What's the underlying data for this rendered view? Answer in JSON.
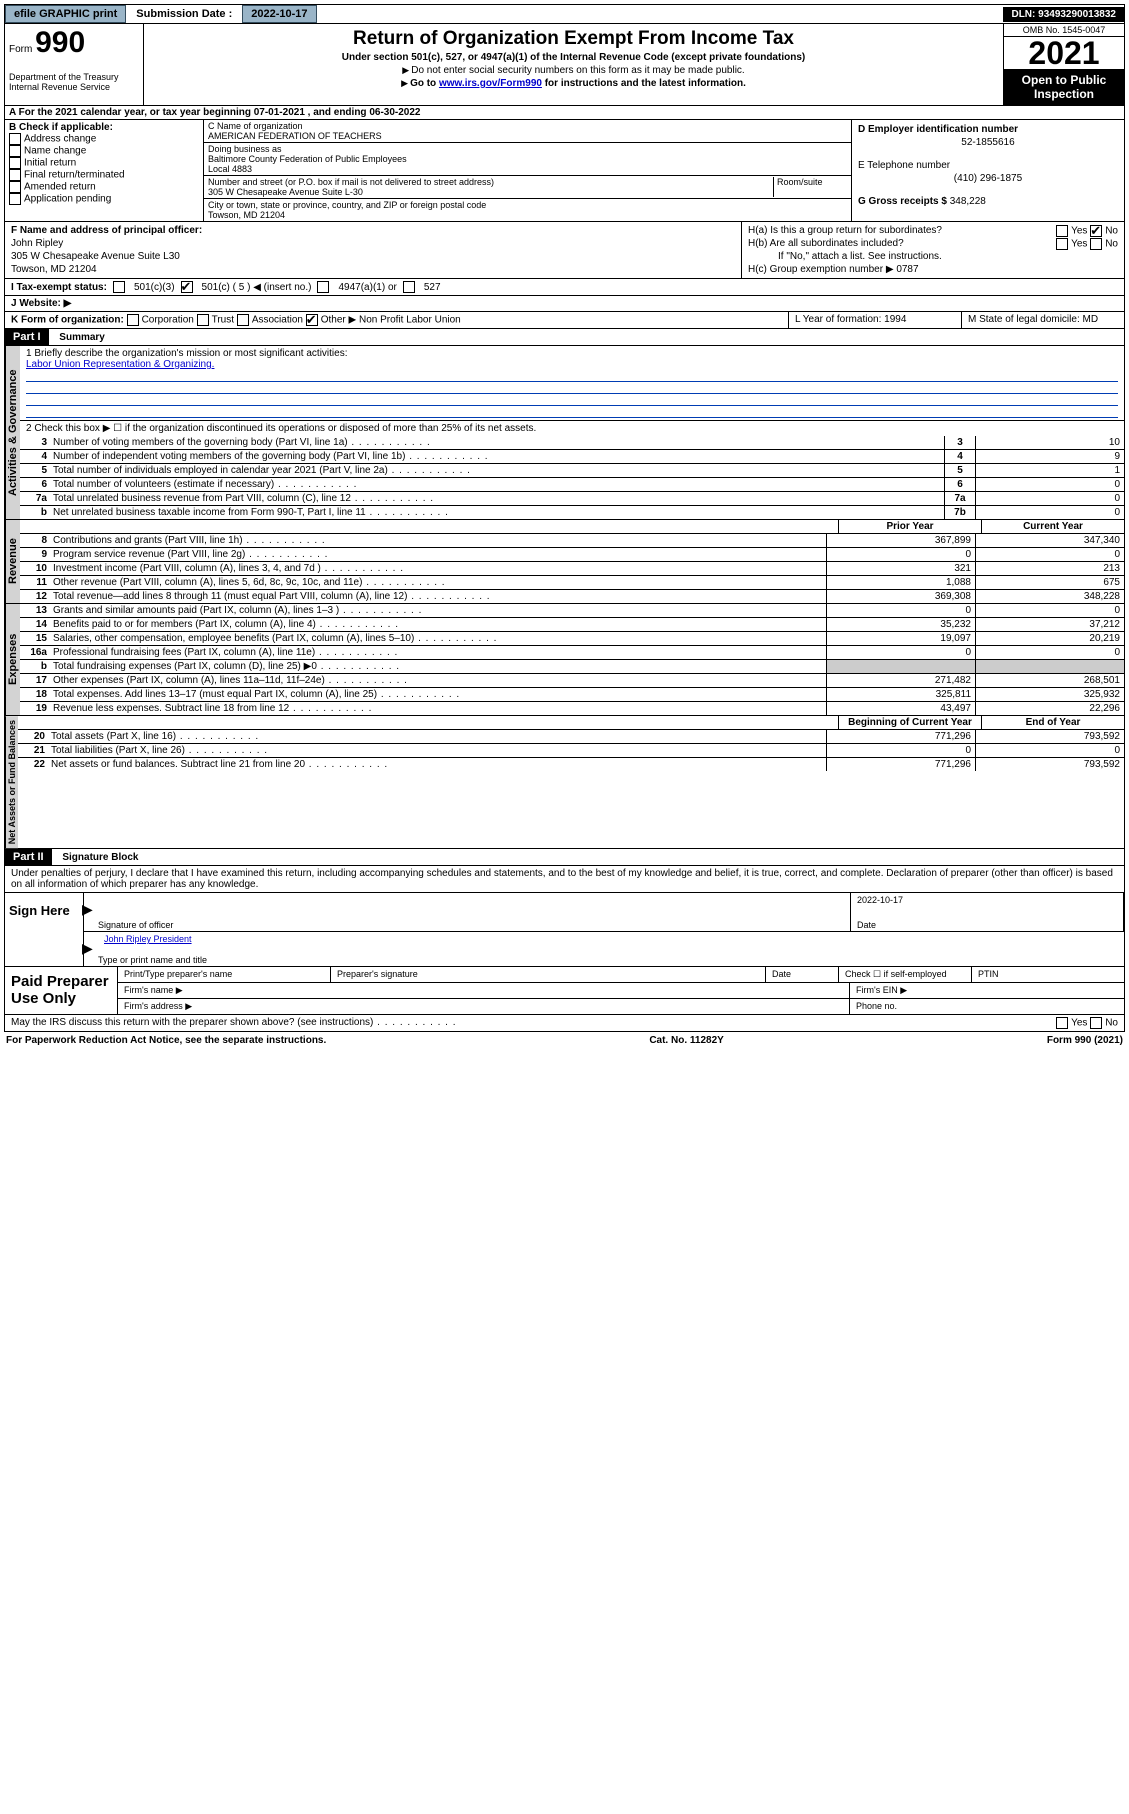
{
  "topbar": {
    "efile": "efile GRAPHIC print",
    "sub_label": "Submission Date :",
    "sub_date": "2022-10-17",
    "dln": "DLN: 93493290013832"
  },
  "header": {
    "form": "Form",
    "num": "990",
    "dept": "Department of the Treasury\nInternal Revenue Service",
    "title": "Return of Organization Exempt From Income Tax",
    "sub": "Under section 501(c), 527, or 4947(a)(1) of the Internal Revenue Code (except private foundations)",
    "line1": "Do not enter social security numbers on this form as it may be made public.",
    "line2_pre": "Go to ",
    "line2_link": "www.irs.gov/Form990",
    "line2_post": " for instructions and the latest information.",
    "omb": "OMB No. 1545-0047",
    "year": "2021",
    "inspect": "Open to Public Inspection"
  },
  "a_line": "A For the 2021 calendar year, or tax year beginning 07-01-2021    , and ending 06-30-2022",
  "b": {
    "title": "B Check if applicable:",
    "items": [
      "Address change",
      "Name change",
      "Initial return",
      "Final return/terminated",
      "Amended return",
      "Application pending"
    ]
  },
  "c": {
    "name_label": "C Name of organization",
    "name": "AMERICAN FEDERATION OF TEACHERS",
    "dba_label": "Doing business as",
    "dba": "Baltimore County Federation of Public Employees\nLocal 4883",
    "street_label": "Number and street (or P.O. box if mail is not delivered to street address)",
    "street": "305 W Chesapeake Avenue Suite L-30",
    "room_label": "Room/suite",
    "city_label": "City or town, state or province, country, and ZIP or foreign postal code",
    "city": "Towson, MD  21204"
  },
  "d": {
    "ein_label": "D Employer identification number",
    "ein": "52-1855616",
    "e_label": "E Telephone number",
    "phone": "(410) 296-1875",
    "g_label": "G Gross receipts $",
    "g_val": "348,228"
  },
  "f": {
    "label": "F  Name and address of principal officer:",
    "name": "John Ripley",
    "addr1": "305 W Chesapeake Avenue Suite L30",
    "addr2": "Towson, MD  21204"
  },
  "h": {
    "a": "H(a)  Is this a group return for subordinates?",
    "b": "H(b)  Are all subordinates included?",
    "b_note": "If \"No,\" attach a list. See instructions.",
    "c": "H(c)  Group exemption number ▶",
    "c_val": "0787",
    "yes": "Yes",
    "no": "No"
  },
  "i": {
    "label": "I   Tax-exempt status:",
    "opts": [
      "501(c)(3)",
      "501(c) ( 5 ) ◀ (insert no.)",
      "4947(a)(1) or",
      "527"
    ]
  },
  "j": {
    "label": "J   Website: ▶"
  },
  "k": {
    "label": "K Form of organization:",
    "opts": [
      "Corporation",
      "Trust",
      "Association",
      "Other ▶"
    ],
    "other": "Non Profit Labor Union",
    "l": "L Year of formation: 1994",
    "m": "M State of legal domicile: MD"
  },
  "partI": {
    "header": "Part I",
    "title": "Summary",
    "q1": "1   Briefly describe the organization's mission or most significant activities:",
    "mission": "Labor Union Representation & Organizing.",
    "q2": "2   Check this box ▶ ☐  if the organization discontinued its operations or disposed of more than 25% of its net assets.",
    "rows_gov": [
      {
        "n": "3",
        "d": "Number of voting members of the governing body (Part VI, line 1a)",
        "k": "3",
        "v": "10"
      },
      {
        "n": "4",
        "d": "Number of independent voting members of the governing body (Part VI, line 1b)",
        "k": "4",
        "v": "9"
      },
      {
        "n": "5",
        "d": "Total number of individuals employed in calendar year 2021 (Part V, line 2a)",
        "k": "5",
        "v": "1"
      },
      {
        "n": "6",
        "d": "Total number of volunteers (estimate if necessary)",
        "k": "6",
        "v": "0"
      },
      {
        "n": "7a",
        "d": "Total unrelated business revenue from Part VIII, column (C), line 12",
        "k": "7a",
        "v": "0"
      },
      {
        "n": "b",
        "d": "Net unrelated business taxable income from Form 990-T, Part I, line 11",
        "k": "7b",
        "v": "0"
      }
    ],
    "prior": "Prior Year",
    "current": "Current Year",
    "rows_rev": [
      {
        "n": "8",
        "d": "Contributions and grants (Part VIII, line 1h)",
        "p": "367,899",
        "c": "347,340"
      },
      {
        "n": "9",
        "d": "Program service revenue (Part VIII, line 2g)",
        "p": "0",
        "c": "0"
      },
      {
        "n": "10",
        "d": "Investment income (Part VIII, column (A), lines 3, 4, and 7d )",
        "p": "321",
        "c": "213"
      },
      {
        "n": "11",
        "d": "Other revenue (Part VIII, column (A), lines 5, 6d, 8c, 9c, 10c, and 11e)",
        "p": "1,088",
        "c": "675"
      },
      {
        "n": "12",
        "d": "Total revenue—add lines 8 through 11 (must equal Part VIII, column (A), line 12)",
        "p": "369,308",
        "c": "348,228"
      }
    ],
    "rows_exp": [
      {
        "n": "13",
        "d": "Grants and similar amounts paid (Part IX, column (A), lines 1–3 )",
        "p": "0",
        "c": "0"
      },
      {
        "n": "14",
        "d": "Benefits paid to or for members (Part IX, column (A), line 4)",
        "p": "35,232",
        "c": "37,212"
      },
      {
        "n": "15",
        "d": "Salaries, other compensation, employee benefits (Part IX, column (A), lines 5–10)",
        "p": "19,097",
        "c": "20,219"
      },
      {
        "n": "16a",
        "d": "Professional fundraising fees (Part IX, column (A), line 11e)",
        "p": "0",
        "c": "0"
      },
      {
        "n": "b",
        "d": "Total fundraising expenses (Part IX, column (D), line 25) ▶0",
        "p": "",
        "c": "",
        "shade": true
      },
      {
        "n": "17",
        "d": "Other expenses (Part IX, column (A), lines 11a–11d, 11f–24e)",
        "p": "271,482",
        "c": "268,501"
      },
      {
        "n": "18",
        "d": "Total expenses. Add lines 13–17 (must equal Part IX, column (A), line 25)",
        "p": "325,811",
        "c": "325,932"
      },
      {
        "n": "19",
        "d": "Revenue less expenses. Subtract line 18 from line 12",
        "p": "43,497",
        "c": "22,296"
      }
    ],
    "beg": "Beginning of Current Year",
    "end": "End of Year",
    "rows_bal": [
      {
        "n": "20",
        "d": "Total assets (Part X, line 16)",
        "p": "771,296",
        "c": "793,592"
      },
      {
        "n": "21",
        "d": "Total liabilities (Part X, line 26)",
        "p": "0",
        "c": "0"
      },
      {
        "n": "22",
        "d": "Net assets or fund balances. Subtract line 21 from line 20",
        "p": "771,296",
        "c": "793,592"
      }
    ],
    "labels": {
      "gov": "Activities & Governance",
      "rev": "Revenue",
      "exp": "Expenses",
      "bal": "Net Assets or Fund Balances"
    }
  },
  "partII": {
    "header": "Part II",
    "title": "Signature Block",
    "perjury": "Under penalties of perjury, I declare that I have examined this return, including accompanying schedules and statements, and to the best of my knowledge and belief, it is true, correct, and complete. Declaration of preparer (other than officer) is based on all information of which preparer has any knowledge.",
    "sign": "Sign Here",
    "sig_of": "Signature of officer",
    "date": "Date",
    "sig_date": "2022-10-17",
    "officer": "John Ripley  President",
    "type_name": "Type or print name and title",
    "paid": "Paid Preparer Use Only",
    "p1": "Print/Type preparer's name",
    "p2": "Preparer's signature",
    "p3": "Date",
    "p4": "Check ☐ if self-employed",
    "p5": "PTIN",
    "firm": "Firm's name  ▶",
    "firm_ein": "Firm's EIN ▶",
    "firm_addr": "Firm's address ▶",
    "phone": "Phone no."
  },
  "bottom": {
    "q": "May the IRS discuss this return with the preparer shown above? (see instructions)",
    "yes": "Yes",
    "no": "No"
  },
  "footer": {
    "l": "For Paperwork Reduction Act Notice, see the separate instructions.",
    "c": "Cat. No. 11282Y",
    "r": "Form 990 (2021)"
  }
}
